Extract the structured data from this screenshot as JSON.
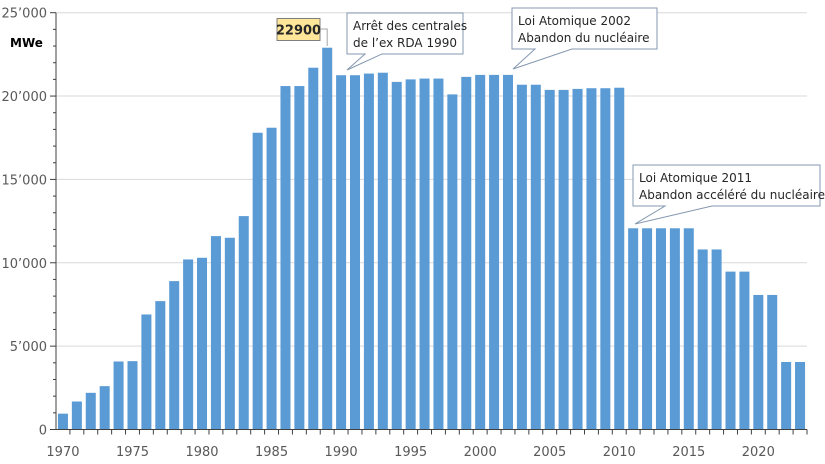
{
  "chart_data": {
    "type": "bar",
    "ylabel": "MWe",
    "ylim": [
      0,
      25000
    ],
    "yticks": [
      "0",
      "5’000",
      "10’000",
      "15’000",
      "20’000",
      "25’000"
    ],
    "xticks": [
      "1970",
      "1975",
      "1980",
      "1985",
      "1990",
      "1995",
      "2000",
      "2005",
      "2010",
      "2015",
      "2020"
    ],
    "grid": true,
    "bar_color": "#5b9bd5",
    "categories": [
      1970,
      1971,
      1972,
      1973,
      1974,
      1975,
      1976,
      1977,
      1978,
      1979,
      1980,
      1981,
      1982,
      1983,
      1984,
      1985,
      1986,
      1987,
      1988,
      1989,
      1990,
      1991,
      1992,
      1993,
      1994,
      1995,
      1996,
      1997,
      1998,
      1999,
      2000,
      2001,
      2002,
      2003,
      2004,
      2005,
      2006,
      2007,
      2008,
      2009,
      2010,
      2011,
      2012,
      2013,
      2014,
      2015,
      2016,
      2017,
      2018,
      2019,
      2020,
      2021,
      2022,
      2023
    ],
    "values": [
      950,
      1680,
      2200,
      2600,
      4080,
      4100,
      6900,
      7700,
      8900,
      10200,
      10300,
      11600,
      11500,
      12800,
      17800,
      18100,
      20600,
      20600,
      21700,
      22900,
      21250,
      21250,
      21350,
      21400,
      20850,
      21000,
      21050,
      21050,
      20100,
      21150,
      21270,
      21270,
      21270,
      20680,
      20680,
      20370,
      20370,
      20430,
      20470,
      20470,
      20500,
      12070,
      12070,
      12070,
      12070,
      12070,
      10800,
      10800,
      9470,
      9470,
      8070,
      8070,
      4050,
      4050
    ],
    "annotations": {
      "peak_label": "22900",
      "rda": [
        "Arrêt des centrales",
        "de l’ex RDA 1990"
      ],
      "law2002": [
        "Loi Atomique 2002",
        "Abandon du nucléaire"
      ],
      "law2011": [
        "Loi Atomique 2011",
        "Abandon accéléré du nucléaire"
      ]
    }
  }
}
